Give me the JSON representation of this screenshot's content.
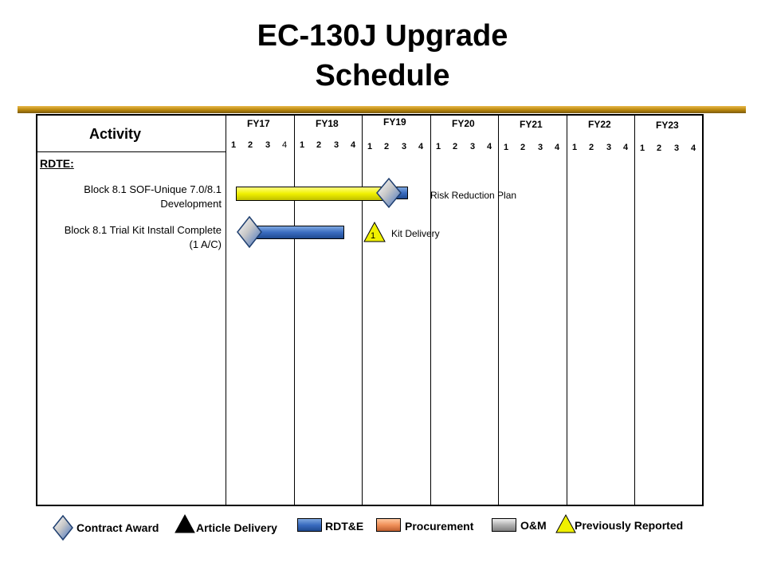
{
  "title": {
    "line1": "EC-130J Upgrade",
    "line2": "Schedule"
  },
  "header": {
    "activity_label": "Activity",
    "fiscal_years": [
      "FY17",
      "FY18",
      "FY19",
      "FY20",
      "FY21",
      "FY22",
      "FY23"
    ],
    "quarters": [
      "1",
      "2",
      "3",
      "4"
    ]
  },
  "sections": [
    {
      "label": "RDTE:",
      "rows": [
        {
          "label_line1": "Block 8.1 SOF-Unique 7.0/8.1",
          "label_line2": "Development",
          "bars": [
            {
              "color": "yellow"
            },
            {
              "color": "blue"
            }
          ],
          "milestones": [
            "contract-award"
          ],
          "annotation": "Risk Reduction  Plan"
        },
        {
          "label_line1": "Block 8.1 Trial Kit Install Complete",
          "label_line2": "(1 A/C)",
          "bars": [
            {
              "color": "blue"
            }
          ],
          "milestones": [
            "contract-award",
            "previously-reported"
          ],
          "milestone_number": "1",
          "annotation": "Kit Delivery"
        }
      ]
    }
  ],
  "legend": [
    {
      "label": "Contract Award",
      "icon": "diamond-icon"
    },
    {
      "label": "Article Delivery",
      "icon": "triangle-icon"
    },
    {
      "label": "RDT&E",
      "icon": "blue-box-icon",
      "color": "#3a6cc0"
    },
    {
      "label": "Procurement",
      "icon": "orange-box-icon",
      "color": "#f0905a"
    },
    {
      "label": "O&M",
      "icon": "gray-box-icon",
      "color": "#b0b0b0"
    },
    {
      "label": "Previously Reported",
      "icon": "yellow-triangle-icon",
      "color": "#f0f000"
    }
  ],
  "colors": {
    "rule_gold": "#b8860b",
    "rdte_blue": "#3a6cc0",
    "prior_yellow": "#f0f000"
  }
}
